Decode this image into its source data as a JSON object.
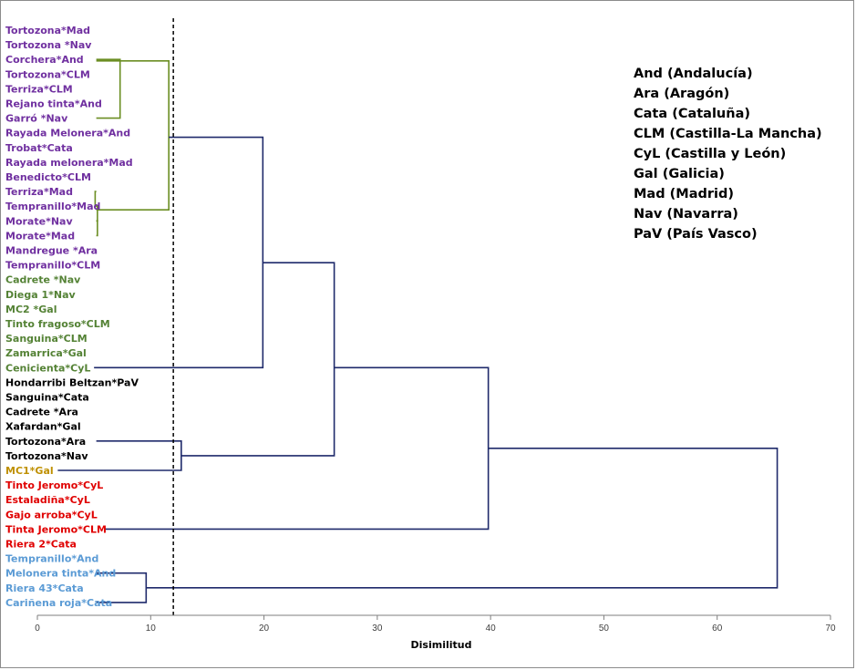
{
  "chart_data": {
    "type": "dendrogram",
    "xlabel": "Disimilitud",
    "xlim": [
      0,
      70
    ],
    "xticks": [
      0,
      10,
      20,
      30,
      40,
      50,
      60,
      70
    ],
    "cut_threshold": 12,
    "leaves": [
      {
        "label": "Tortozona*Mad",
        "color": "#7030a0"
      },
      {
        "label": "Tortozona *Nav",
        "color": "#7030a0"
      },
      {
        "label": "Corchera*And",
        "color": "#7030a0"
      },
      {
        "label": "Tortozona*CLM",
        "color": "#7030a0"
      },
      {
        "label": "Terriza*CLM",
        "color": "#7030a0"
      },
      {
        "label": "Rejano tinta*And",
        "color": "#7030a0"
      },
      {
        "label": "Garró *Nav",
        "color": "#7030a0"
      },
      {
        "label": "Rayada Melonera*And",
        "color": "#7030a0"
      },
      {
        "label": "Trobat*Cata",
        "color": "#7030a0"
      },
      {
        "label": "Rayada melonera*Mad",
        "color": "#7030a0"
      },
      {
        "label": "Benedicto*CLM",
        "color": "#7030a0"
      },
      {
        "label": "Terriza*Mad",
        "color": "#7030a0"
      },
      {
        "label": "Tempranillo*Mad",
        "color": "#7030a0"
      },
      {
        "label": "Morate*Nav",
        "color": "#7030a0"
      },
      {
        "label": "Morate*Mad",
        "color": "#7030a0"
      },
      {
        "label": "Mandregue *Ara",
        "color": "#7030a0"
      },
      {
        "label": "Tempranillo*CLM",
        "color": "#7030a0"
      },
      {
        "label": "Cadrete *Nav",
        "color": "#548235"
      },
      {
        "label": "Diega 1*Nav",
        "color": "#548235"
      },
      {
        "label": "MC2 *Gal",
        "color": "#548235"
      },
      {
        "label": "Tinto fragoso*CLM",
        "color": "#548235"
      },
      {
        "label": "Sanguina*CLM",
        "color": "#548235"
      },
      {
        "label": "Zamarrica*Gal",
        "color": "#548235"
      },
      {
        "label": "Cenicienta*CyL",
        "color": "#548235"
      },
      {
        "label": "Hondarribi Beltzan*PaV",
        "color": "#000000"
      },
      {
        "label": "Sanguina*Cata",
        "color": "#000000"
      },
      {
        "label": "Cadrete *Ara",
        "color": "#000000"
      },
      {
        "label": "Xafardan*Gal",
        "color": "#000000"
      },
      {
        "label": "Tortozona*Ara",
        "color": "#000000"
      },
      {
        "label": "Tortozona*Nav",
        "color": "#000000"
      },
      {
        "label": "MC1*Gal",
        "color": "#bf9000"
      },
      {
        "label": "Tinto Jeromo*CyL",
        "color": "#e00000"
      },
      {
        "label": "Estaladiña*CyL",
        "color": "#e00000"
      },
      {
        "label": "Gajo arroba*CyL",
        "color": "#e00000"
      },
      {
        "label": "Tinta Jeromo*CLM",
        "color": "#e00000"
      },
      {
        "label": "Riera 2*Cata",
        "color": "#e00000"
      },
      {
        "label": "Tempranillo*And",
        "color": "#5b9bd5"
      },
      {
        "label": "Melonera tinta*And",
        "color": "#5b9bd5"
      },
      {
        "label": "Riera 43*Cata",
        "color": "#5b9bd5"
      },
      {
        "label": "Cariñena roja*Cata",
        "color": "#5b9bd5"
      }
    ],
    "merges": [
      {
        "d": 7.3,
        "from": [
          {
            "y": 2
          },
          {
            "y": 6
          }
        ],
        "color": "#6b8e23"
      },
      {
        "d": 5.1,
        "from": [
          {
            "y": 11
          },
          {
            "y": 12
          }
        ],
        "color": "#6b8e23"
      },
      {
        "d": 5.3,
        "from": [
          {
            "y": 13
          },
          {
            "y": 14
          }
        ],
        "color": "#6b8e23"
      },
      {
        "d": 5.3,
        "from": [
          {
            "y": 12
          },
          {
            "y": 13
          }
        ],
        "color": "#6b8e23"
      },
      {
        "d": 11.6,
        "from": [
          {
            "y": 2.1
          },
          {
            "y": 12.25
          }
        ],
        "color": "#6b8e23"
      },
      {
        "d": 19.9,
        "from": [
          {
            "y": 7.3,
            "x0": 11.6
          },
          {
            "y": 23,
            "x0": 5
          }
        ],
        "color": "#1f2a6b"
      },
      {
        "d": 12.7,
        "from": [
          {
            "y": 28
          },
          {
            "y": 30,
            "x0": 1.8
          }
        ],
        "color": "#1f2a6b"
      },
      {
        "d": 26.2,
        "from": [
          {
            "y": 15.85,
            "x0": 19.9
          },
          {
            "y": 29,
            "x0": 12.7
          }
        ],
        "color": "#1f2a6b"
      },
      {
        "d": 39.8,
        "from": [
          {
            "y": 23,
            "x0": 26.2
          },
          {
            "y": 34,
            "x0": 6
          }
        ],
        "color": "#1f2a6b"
      },
      {
        "d": 9.6,
        "from": [
          {
            "y": 37
          },
          {
            "y": 39
          }
        ],
        "color": "#1f2a6b"
      },
      {
        "d": 65.3,
        "from": [
          {
            "y": 28.5,
            "x0": 39.8
          },
          {
            "y": 38,
            "x0": 9.6
          }
        ],
        "color": "#1f2a6b"
      }
    ]
  },
  "legend": {
    "entries": [
      "And (Andalucía)",
      "Ara (Aragón)",
      "Cata (Cataluña)",
      "CLM (Castilla-La Mancha)",
      "CyL (Castilla y León)",
      "Gal (Galicia)",
      "Mad (Madrid)",
      "Nav (Navarra)",
      "PaV (País Vasco)"
    ]
  }
}
